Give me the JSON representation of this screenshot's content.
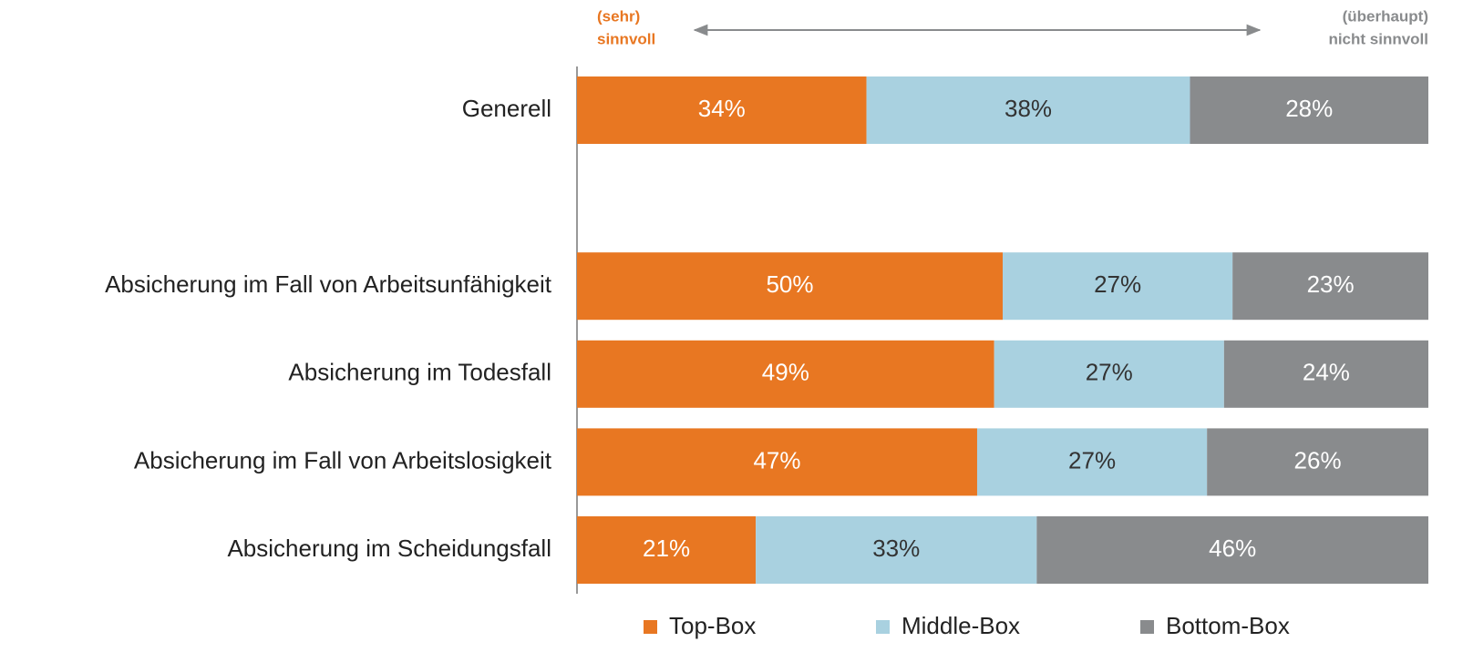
{
  "chart_data": {
    "type": "stacked_bar_horizontal",
    "left_label": [
      "(sehr)",
      "sinnvoll"
    ],
    "right_label": [
      "(überhaupt)",
      "nicht sinnvoll"
    ],
    "categories": [
      "Generell",
      null,
      "Absicherung im Fall von Arbeitsunfähigkeit",
      "Absicherung im Todesfall",
      "Absicherung im Fall von Arbeitslosigkeit",
      "Absicherung im Scheidungsfall"
    ],
    "xlim": [
      0,
      100
    ],
    "series": [
      {
        "name": "Top-Box",
        "color": "#e87722",
        "label_color": "#ffffff",
        "values": [
          34,
          null,
          50,
          49,
          47,
          21
        ],
        "value_labels": [
          "34%",
          null,
          "50%",
          "49%",
          "47%",
          "21%"
        ]
      },
      {
        "name": "Middle-Box",
        "color": "#a9d1e0",
        "label_color": "#333333",
        "values": [
          38,
          null,
          27,
          27,
          27,
          33
        ],
        "value_labels": [
          "38%",
          null,
          "27%",
          "27%",
          "27%",
          "33%"
        ]
      },
      {
        "name": "Bottom-Box",
        "color": "#898b8d",
        "label_color": "#ffffff",
        "values": [
          28,
          null,
          23,
          24,
          26,
          46
        ],
        "value_labels": [
          "28%",
          null,
          "23%",
          "24%",
          "26%",
          "46%"
        ]
      }
    ]
  }
}
